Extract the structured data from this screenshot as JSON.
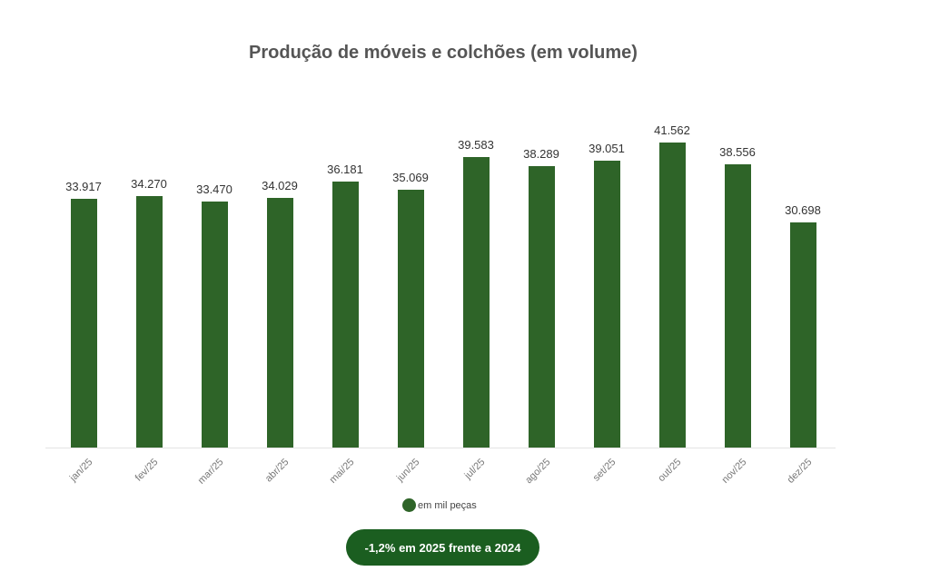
{
  "chart_data": {
    "type": "bar",
    "title": "Produção de móveis e colchões (em volume)",
    "categories": [
      "jan/25",
      "fev/25",
      "mar/25",
      "abr/25",
      "mai/25",
      "jun/25",
      "jul/25",
      "ago/25",
      "set/25",
      "out/25",
      "nov/25",
      "dez/25"
    ],
    "series": [
      {
        "name": "em mil peças",
        "color": "#2e6428",
        "values": [
          33.917,
          34.27,
          33.47,
          34.029,
          36.181,
          35.069,
          39.583,
          38.289,
          39.051,
          41.562,
          38.556,
          30.698
        ]
      }
    ],
    "value_labels": [
      "33.917",
      "34.270",
      "33.470",
      "34.029",
      "36.181",
      "35.069",
      "39.583",
      "38.289",
      "39.051",
      "41.562",
      "38.556",
      "30.698"
    ],
    "xlabel": "",
    "ylabel": "",
    "ylim": [
      0,
      48.6
    ],
    "grid": false,
    "legend_position": "bottom",
    "annotation": "-1,2% em 2025 frente a 2024"
  },
  "legend": {
    "label": "em mil peças",
    "color": "#2e6428"
  },
  "badge": {
    "text": "-1,2% em 2025 frente a 2024",
    "color": "#1b5e20"
  }
}
